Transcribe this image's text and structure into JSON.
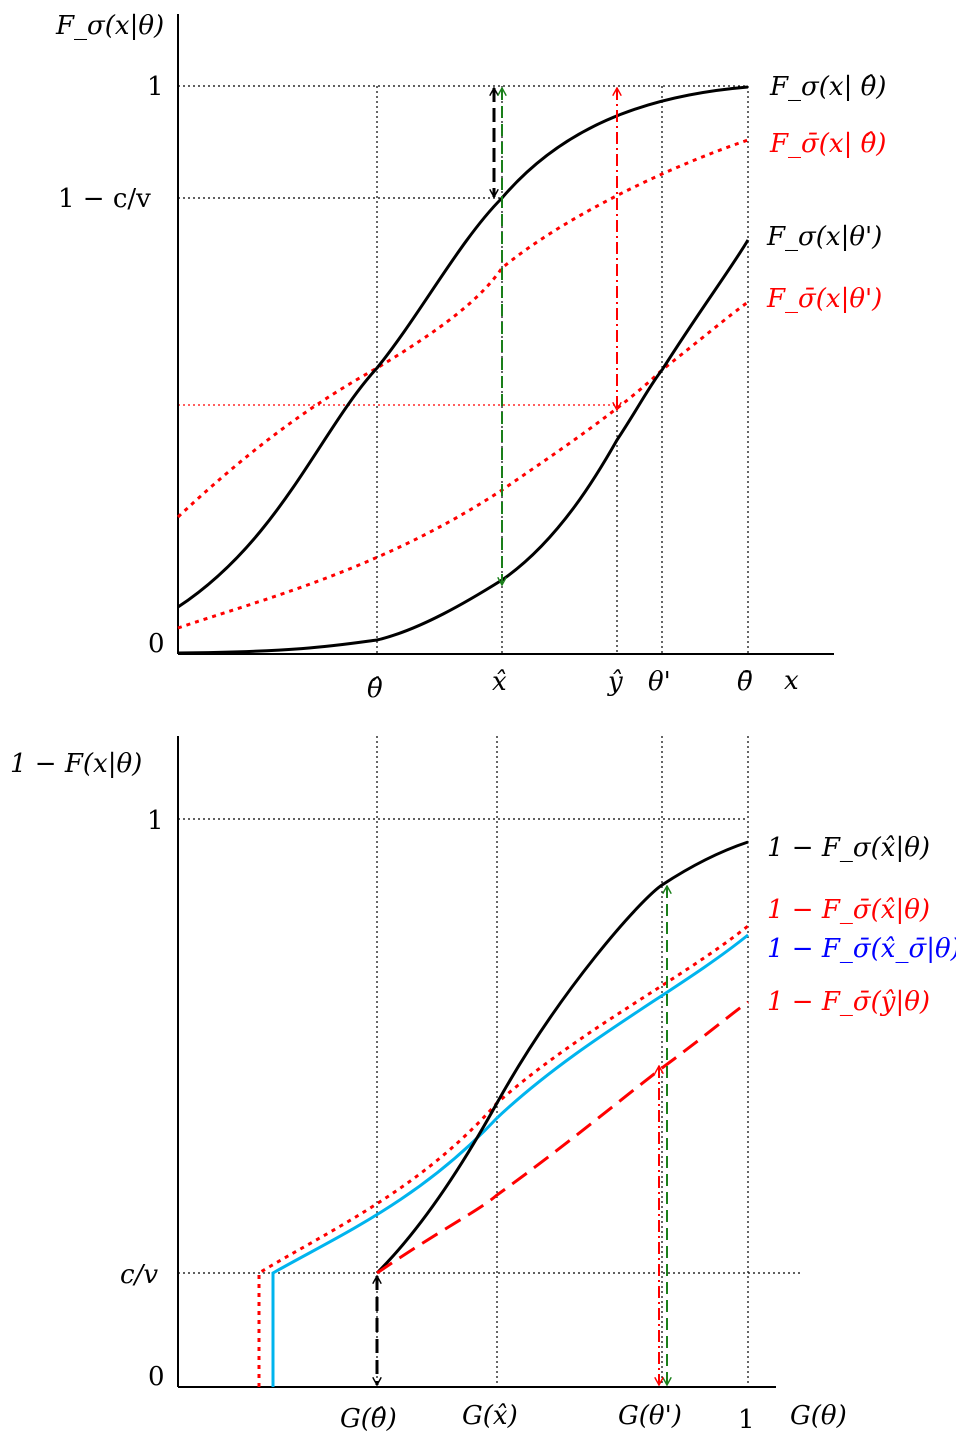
{
  "colors": {
    "black": "#000000",
    "red": "#ff0000",
    "green": "#1a7f1a",
    "blue": "#0000ff",
    "cyan": "#00b4ee"
  },
  "top_panel": {
    "ylabel": "F_σ(x|θ)",
    "xlabel": "x",
    "y_ticks": [
      "1",
      "1 − c/v",
      "0"
    ],
    "x_ticks": [
      "θ̂",
      "x̂",
      "ŷ",
      "θ'",
      "θ̄"
    ],
    "curve_labels": [
      {
        "text": "F_σ(x| θ̂)",
        "color": "#000000"
      },
      {
        "text": "F_σ̄(x| θ̂)",
        "color": "#ff0000"
      },
      {
        "text": "F_σ(x|θ')",
        "color": "#000000"
      },
      {
        "text": "F_σ̄(x|θ')",
        "color": "#ff0000"
      }
    ]
  },
  "bottom_panel": {
    "ylabel": "1 − F(x|θ)",
    "xlabel": "G(θ)",
    "y_ticks": [
      "1",
      "c/v",
      "0"
    ],
    "x_ticks": [
      "G(θ̂)",
      "G(x̂)",
      "G(θ')",
      "1"
    ],
    "curve_labels": [
      {
        "text": "1 − F_σ(x̂|θ)",
        "color": "#000000"
      },
      {
        "text": "1 − F_σ̄(x̂|θ)",
        "color": "#ff0000"
      },
      {
        "text": "1 − F_σ̄(x̂_σ̄|θ)",
        "color": "#0000ff"
      },
      {
        "text": "1 − F_σ̄(ŷ|θ)",
        "color": "#ff0000"
      }
    ]
  }
}
